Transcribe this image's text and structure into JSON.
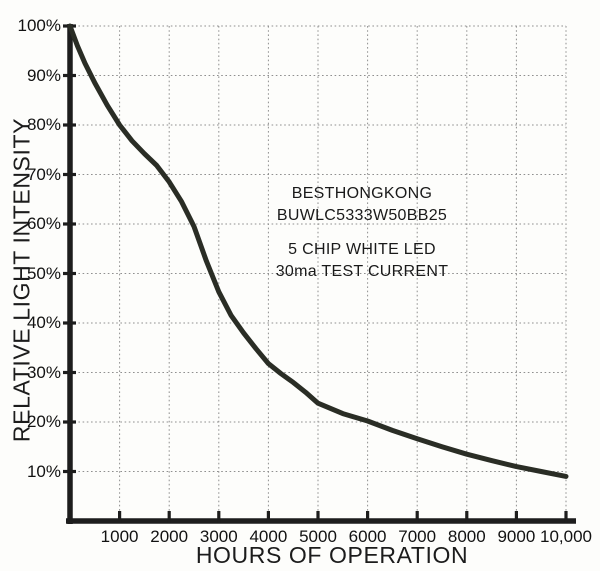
{
  "colors": {
    "background": "#fdfdfb",
    "curve": "#2a2d25",
    "axis": "#1d1d1d",
    "grid": "#8f8f8f",
    "text": "#161616"
  },
  "chart_data": {
    "type": "line",
    "title": "",
    "xlabel": "HOURS OF OPERATION",
    "ylabel": "RELATIVE LIGHT INTENSITY",
    "xlim": [
      0,
      10000
    ],
    "ylim": [
      0,
      100
    ],
    "grid": "dotted",
    "legend": "none",
    "x_ticks": [
      {
        "value": 1000,
        "label": "1000"
      },
      {
        "value": 2000,
        "label": "2000"
      },
      {
        "value": 3000,
        "label": "3000"
      },
      {
        "value": 4000,
        "label": "4000"
      },
      {
        "value": 5000,
        "label": "5000"
      },
      {
        "value": 6000,
        "label": "6000"
      },
      {
        "value": 7000,
        "label": "7000"
      },
      {
        "value": 8000,
        "label": "8000"
      },
      {
        "value": 9000,
        "label": "9000"
      },
      {
        "value": 10000,
        "label": "10,000"
      }
    ],
    "y_ticks": [
      {
        "value": 10,
        "label": "10%"
      },
      {
        "value": 20,
        "label": "20%"
      },
      {
        "value": 30,
        "label": "30%"
      },
      {
        "value": 40,
        "label": "40%"
      },
      {
        "value": 50,
        "label": "50%"
      },
      {
        "value": 60,
        "label": "60%"
      },
      {
        "value": 70,
        "label": "70%"
      },
      {
        "value": 80,
        "label": "80%"
      },
      {
        "value": 90,
        "label": "90%"
      },
      {
        "value": 100,
        "label": "100%"
      }
    ],
    "series": [
      {
        "name": "relative light intensity vs hours",
        "points": [
          [
            0,
            100
          ],
          [
            150,
            96
          ],
          [
            300,
            92.5
          ],
          [
            500,
            88.5
          ],
          [
            750,
            84
          ],
          [
            1000,
            80
          ],
          [
            1250,
            76.8
          ],
          [
            1500,
            74.2
          ],
          [
            1750,
            71.8
          ],
          [
            2000,
            68.5
          ],
          [
            2250,
            64.5
          ],
          [
            2500,
            59.5
          ],
          [
            2750,
            52.5
          ],
          [
            3000,
            46.3
          ],
          [
            3250,
            41.5
          ],
          [
            3500,
            38
          ],
          [
            3750,
            34.8
          ],
          [
            4000,
            31.8
          ],
          [
            4250,
            29.8
          ],
          [
            4500,
            28
          ],
          [
            4750,
            26
          ],
          [
            5000,
            23.8
          ],
          [
            5500,
            21.7
          ],
          [
            6000,
            20.2
          ],
          [
            6500,
            18.3
          ],
          [
            7000,
            16.6
          ],
          [
            7500,
            15
          ],
          [
            8000,
            13.5
          ],
          [
            8500,
            12.2
          ],
          [
            9000,
            11
          ],
          [
            9500,
            10
          ],
          [
            10000,
            9
          ]
        ]
      }
    ],
    "annotation": {
      "lines": [
        "BESTHONGKONG",
        "BUWLC5333W50BB25",
        "5 CHIP WHITE LED",
        "30ma TEST CURRENT"
      ]
    }
  }
}
